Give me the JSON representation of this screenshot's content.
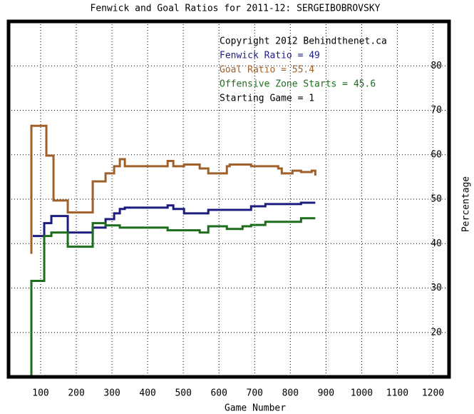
{
  "chart_data": {
    "type": "line",
    "title": "Fenwick and Goal Ratios for 2011-12: SERGEIBOBROVSKY",
    "x_label": "Game Number",
    "y_label": "Percentage",
    "copyright": "Copyright 2012 Behindthenet.ca",
    "starting_game": "Starting Game = 1",
    "xlim": [
      10,
      1245
    ],
    "ylim": [
      10,
      90
    ],
    "xticks": [
      100,
      200,
      300,
      400,
      500,
      600,
      700,
      800,
      900,
      1000,
      1100,
      1200
    ],
    "yticks": [
      20,
      30,
      40,
      50,
      60,
      70,
      80
    ],
    "grid": true,
    "series": [
      {
        "name": "Fenwick Ratio = 49",
        "color": "#1c1c80",
        "x": [
          78,
          110,
          110,
          130,
          130,
          176,
          176,
          246,
          246,
          282,
          282,
          306,
          306,
          322,
          322,
          336,
          336,
          456,
          456,
          472,
          472,
          502,
          502,
          570,
          570,
          690,
          690,
          730,
          730,
          830,
          830,
          870
        ],
        "values": [
          41.7,
          41.7,
          44.6,
          44.6,
          46.2,
          46.2,
          42.5,
          42.5,
          43.6,
          43.6,
          45.5,
          45.5,
          46.8,
          46.8,
          47.8,
          47.8,
          48.1,
          48.1,
          48.6,
          48.6,
          47.8,
          47.8,
          46.8,
          46.8,
          47.6,
          47.6,
          48.4,
          48.4,
          48.9,
          48.9,
          49.2,
          49.2
        ]
      },
      {
        "name": "Goal Ratio = 55.4",
        "color": "#a0602a",
        "x": [
          74,
          74,
          116,
          116,
          136,
          136,
          176,
          176,
          246,
          246,
          282,
          282,
          306,
          306,
          322,
          322,
          336,
          336,
          456,
          456,
          472,
          472,
          502,
          502,
          546,
          546,
          570,
          570,
          622,
          622,
          630,
          630,
          690,
          690,
          766,
          766,
          776,
          776,
          806,
          806,
          830,
          830,
          860,
          860,
          870,
          870
        ],
        "values": [
          37.7,
          66.5,
          66.5,
          59.8,
          59.8,
          49.7,
          49.7,
          47,
          47,
          54,
          54,
          55.8,
          55.8,
          57.4,
          57.4,
          59,
          59,
          57.4,
          57.4,
          58.6,
          58.6,
          57.4,
          57.4,
          57.8,
          57.8,
          56.9,
          56.9,
          55.8,
          55.8,
          57.4,
          57.4,
          57.8,
          57.8,
          57.4,
          57.4,
          56.9,
          56.9,
          55.8,
          55.8,
          56.4,
          56.4,
          56.1,
          56.1,
          56.4,
          56.4,
          55.3
        ]
      },
      {
        "name": "Offensive Zone Starts = 45.6",
        "color": "#1c6e1c",
        "x": [
          74,
          74,
          110,
          110,
          130,
          130,
          176,
          176,
          246,
          246,
          282,
          282,
          322,
          322,
          456,
          456,
          546,
          546,
          570,
          570,
          622,
          622,
          666,
          666,
          690,
          690,
          730,
          730,
          830,
          830,
          870
        ],
        "values": [
          10,
          31.6,
          31.6,
          41.7,
          41.7,
          42.5,
          42.5,
          39.3,
          39.3,
          44.6,
          44.6,
          44.1,
          44.1,
          43.6,
          43.6,
          43,
          43,
          42.5,
          42.5,
          43.9,
          43.9,
          43.3,
          43.3,
          43.9,
          43.9,
          44.2,
          44.2,
          44.9,
          44.9,
          45.7,
          45.7
        ]
      }
    ]
  }
}
